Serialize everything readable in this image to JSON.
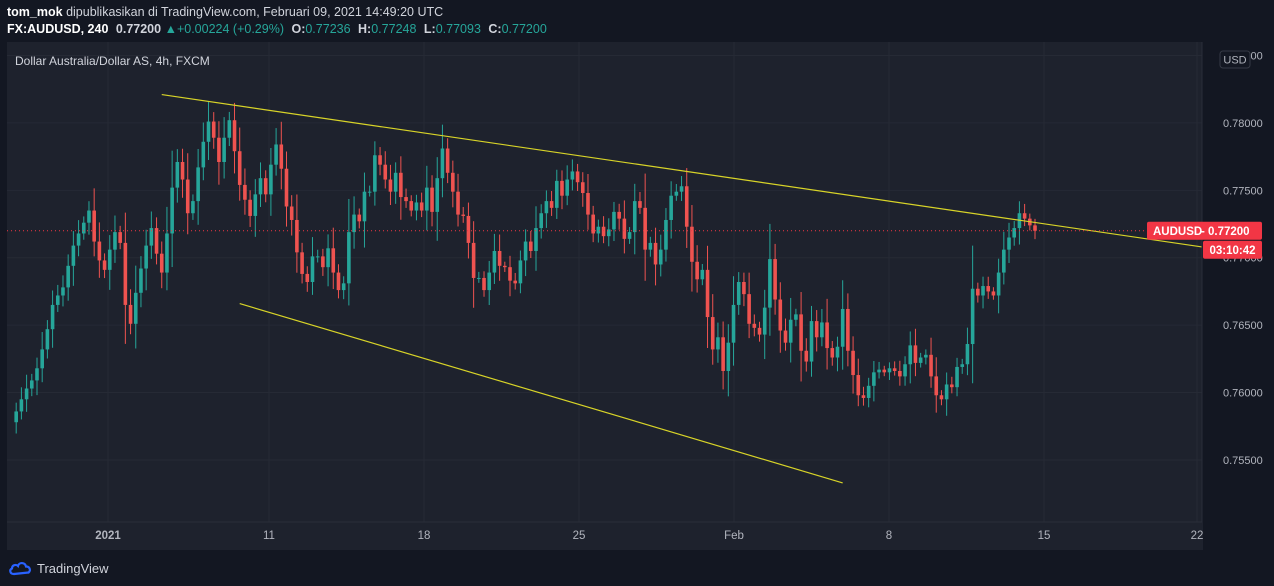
{
  "header": {
    "author": "tom_mok",
    "published_text": "dipublikasikan di TradingView.com, Februari 09, 2021 14:49:20 UTC",
    "symbol": "FX:AUDUSD, 240",
    "last": "0.77200",
    "change_arrow": "▲",
    "change": "+0.00224 (+0.29%)",
    "open_label": "O:",
    "open": "0.77236",
    "high_label": "H:",
    "high": "0.77248",
    "low_label": "L:",
    "low": "0.77093",
    "close_label": "C:",
    "close": "0.77200"
  },
  "chart_title": "Dollar Australia/Dollar AS, 4h, FXCM",
  "currency_badge": "USD",
  "price_label": "AUDUSD",
  "price_label_value": "0.77200",
  "countdown": "03:10:42",
  "footer": {
    "brand": "TradingView"
  },
  "colors": {
    "bull": "#26a69a",
    "bear": "#ef5350",
    "trendline": "#d8d428",
    "price": "#f23645"
  },
  "chart_data": {
    "type": "candlestick",
    "title": "Dollar Australia/Dollar AS, 4h, FXCM",
    "x_tick_labels": [
      "2021",
      "11",
      "18",
      "25",
      "Feb",
      "8",
      "15",
      "22"
    ],
    "y_ticks": [
      0.755,
      0.76,
      0.765,
      0.77,
      0.775,
      0.78,
      0.785
    ],
    "y_tick_labels": [
      "0.75500",
      "0.76000",
      "0.76500",
      "0.77000",
      "0.77500",
      "0.78000",
      "0.78500"
    ],
    "ylim": [
      0.7504,
      0.786
    ],
    "last_price": 0.772,
    "closes": [
      0.7578,
      0.7586,
      0.7595,
      0.7603,
      0.7609,
      0.7618,
      0.7632,
      0.7647,
      0.7665,
      0.7672,
      0.7678,
      0.7694,
      0.7709,
      0.7718,
      0.7726,
      0.7735,
      0.7712,
      0.7698,
      0.7691,
      0.7706,
      0.7719,
      0.7711,
      0.7665,
      0.7651,
      0.7674,
      0.7692,
      0.7709,
      0.7722,
      0.7703,
      0.7689,
      0.7718,
      0.7752,
      0.7771,
      0.7758,
      0.7733,
      0.7742,
      0.7767,
      0.7786,
      0.7801,
      0.7789,
      0.7771,
      0.7789,
      0.7802,
      0.7779,
      0.7754,
      0.7743,
      0.7731,
      0.7747,
      0.7759,
      0.7747,
      0.7769,
      0.7784,
      0.7766,
      0.7738,
      0.7728,
      0.7704,
      0.7688,
      0.7682,
      0.7701,
      0.7701,
      0.7693,
      0.7707,
      0.7689,
      0.7676,
      0.7681,
      0.7719,
      0.7732,
      0.7727,
      0.7749,
      0.7749,
      0.7776,
      0.7769,
      0.7758,
      0.7749,
      0.7763,
      0.7745,
      0.7742,
      0.7735,
      0.7741,
      0.7735,
      0.7752,
      0.7734,
      0.7759,
      0.7781,
      0.7763,
      0.7749,
      0.7732,
      0.7731,
      0.7711,
      0.7685,
      0.7685,
      0.7676,
      0.7689,
      0.7705,
      0.7694,
      0.7693,
      0.7683,
      0.7681,
      0.7698,
      0.7712,
      0.7705,
      0.7722,
      0.7733,
      0.7742,
      0.7737,
      0.7757,
      0.7746,
      0.7758,
      0.7764,
      0.7756,
      0.7748,
      0.7732,
      0.7718,
      0.7723,
      0.7716,
      0.7721,
      0.7734,
      0.7729,
      0.7714,
      0.7719,
      0.7742,
      0.7737,
      0.7706,
      0.7711,
      0.7695,
      0.7706,
      0.7728,
      0.7746,
      0.7749,
      0.7753,
      0.7723,
      0.7697,
      0.7684,
      0.7691,
      0.7656,
      0.7632,
      0.7641,
      0.7616,
      0.7637,
      0.7665,
      0.7682,
      0.7673,
      0.7651,
      0.7648,
      0.7643,
      0.7663,
      0.7699,
      0.7669,
      0.7646,
      0.7637,
      0.7654,
      0.7658,
      0.7631,
      0.7623,
      0.7653,
      0.7641,
      0.7652,
      0.7633,
      0.7626,
      0.7634,
      0.7662,
      0.7631,
      0.7613,
      0.7598,
      0.7596,
      0.7605,
      0.7615,
      0.7617,
      0.7615,
      0.7618,
      0.7616,
      0.7612,
      0.7621,
      0.7635,
      0.7622,
      0.7626,
      0.7628,
      0.7612,
      0.7598,
      0.7595,
      0.7606,
      0.7604,
      0.7619,
      0.7621,
      0.7636,
      0.7677,
      0.7672,
      0.7679,
      0.7675,
      0.7672,
      0.7689,
      0.7706,
      0.7715,
      0.7722,
      0.7733,
      0.7729,
      0.7724,
      0.772
    ],
    "trendlines": [
      {
        "from_index": 29,
        "from_price": 0.7821,
        "to_price_at_right_edge": 0.7708
      },
      {
        "from_index": 44,
        "from_price": 0.7666,
        "to_index": 160,
        "to_price": 0.7533
      }
    ]
  }
}
